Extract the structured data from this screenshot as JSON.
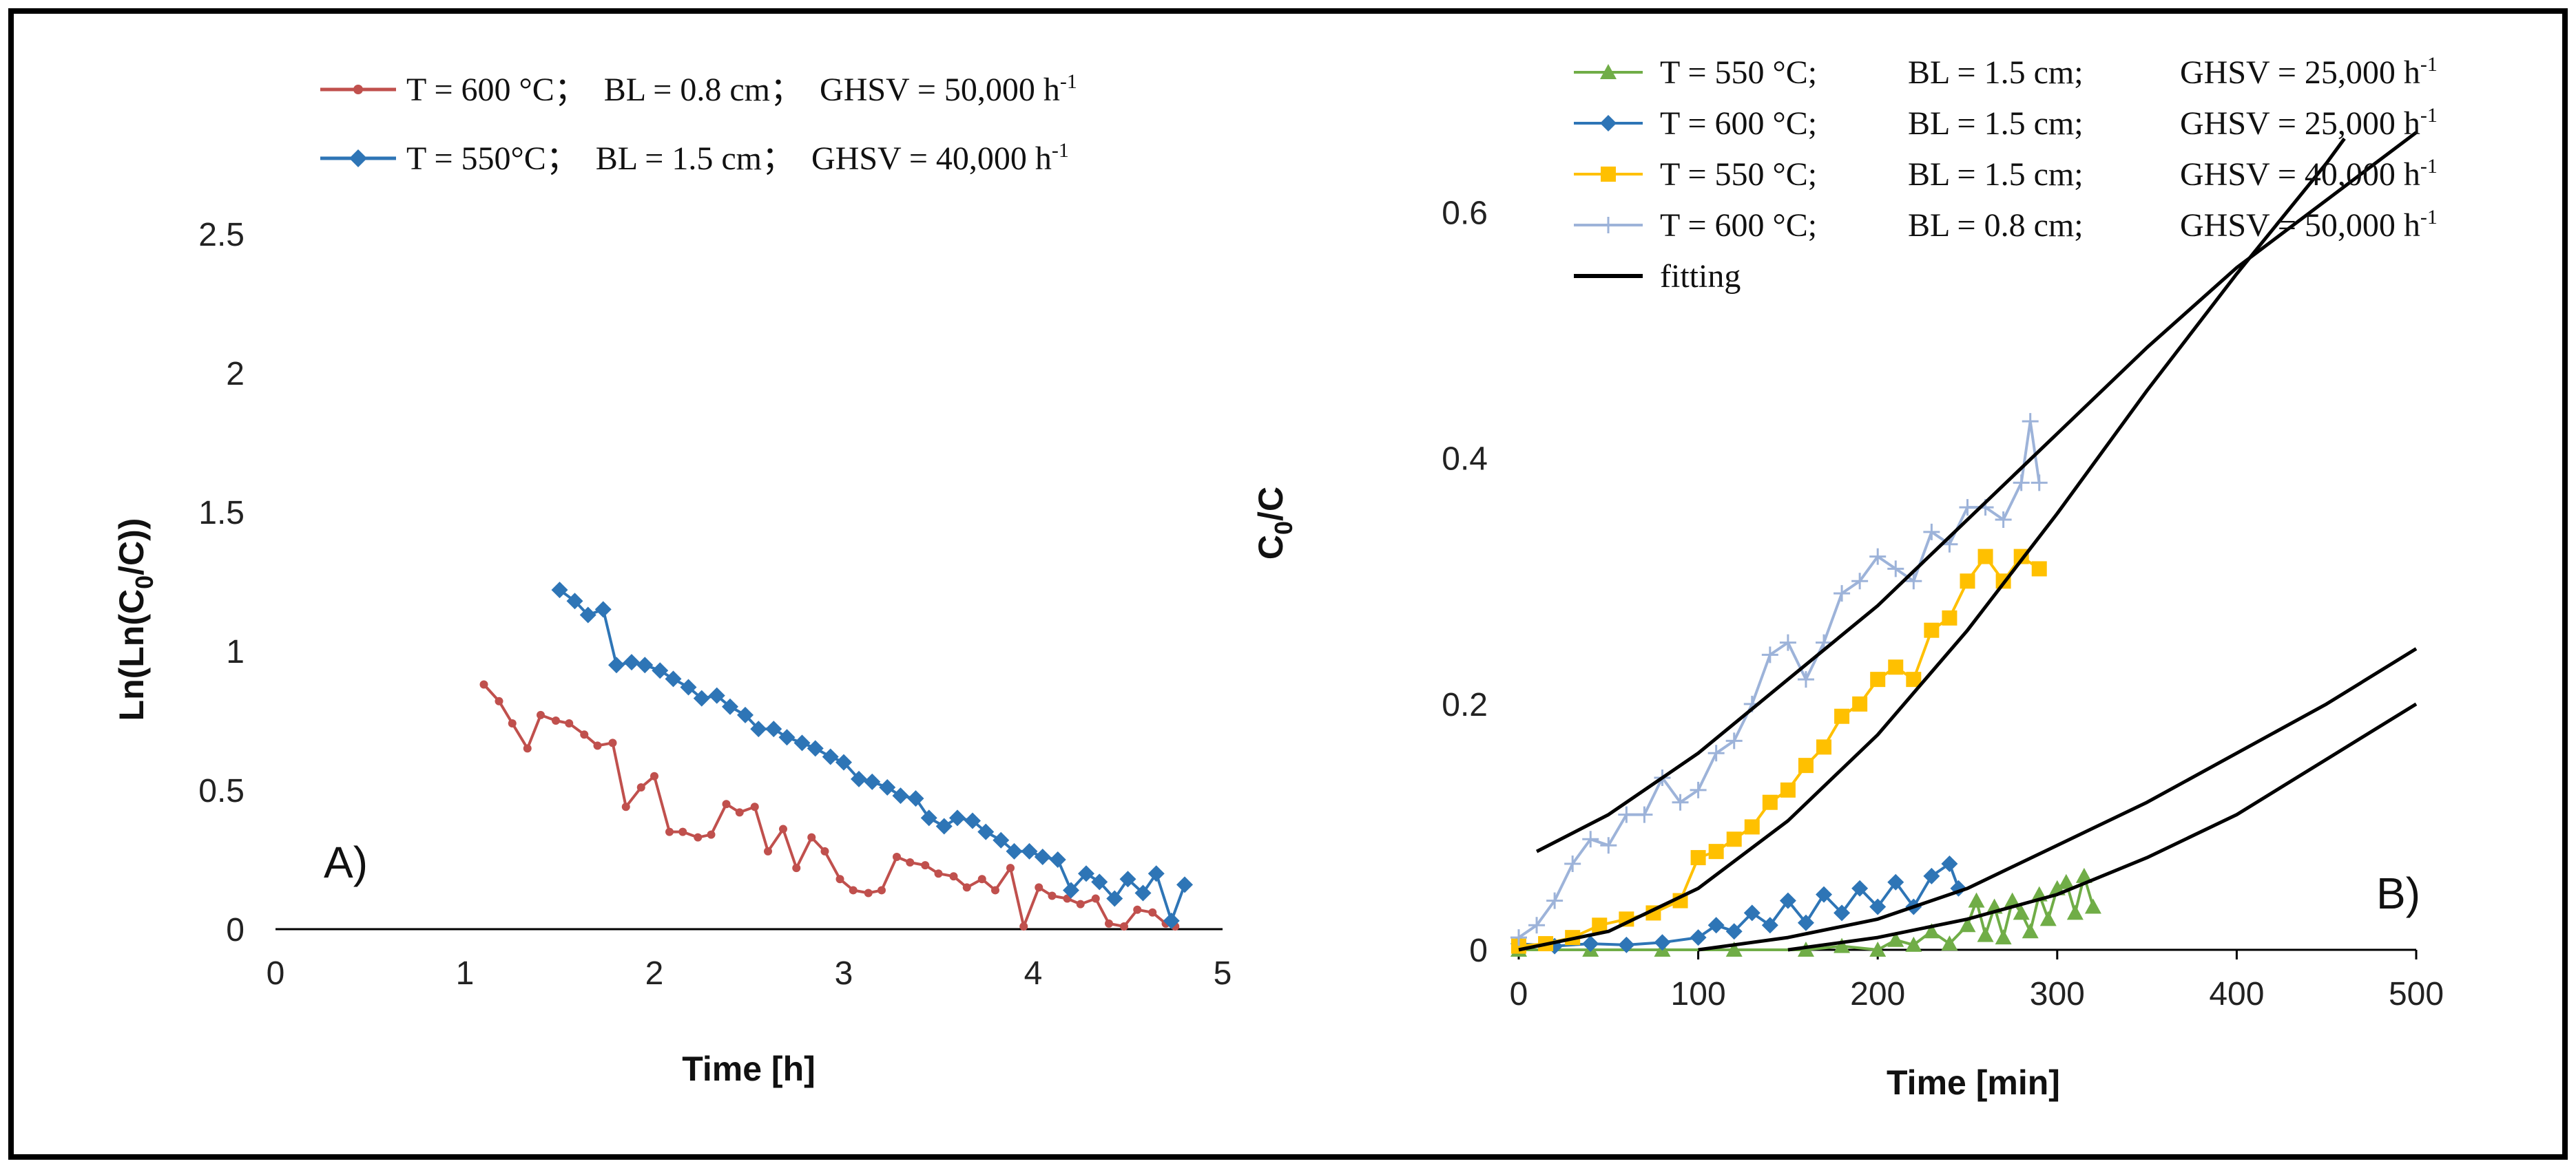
{
  "chart_data": [
    {
      "id": "A",
      "type": "line",
      "panel_label": "A)",
      "xlabel": "Time [h]",
      "ylabel": "Ln(Ln(C0/C))",
      "xlim": [
        0,
        5
      ],
      "ylim": [
        0,
        2.5
      ],
      "xticks": [
        "0",
        "1",
        "2",
        "3",
        "4",
        "5"
      ],
      "yticks": [
        "0",
        "0.5",
        "1",
        "1.5",
        "2",
        "2.5"
      ],
      "legend_position": "top",
      "series": [
        {
          "name": "T = 600 °C； BL = 0.8 cm； GHSV = 50,000 h-1",
          "legend": {
            "t": "T = 600 °C；",
            "bl": "BL = 0.8 cm；",
            "ghsv": "GHSV = 50,000 h",
            "sup": "-1"
          },
          "color": "#c0504d",
          "marker": "dot",
          "x": [
            1.1,
            1.18,
            1.25,
            1.33,
            1.4,
            1.48,
            1.55,
            1.63,
            1.7,
            1.78,
            1.85,
            1.93,
            2.0,
            2.08,
            2.15,
            2.23,
            2.3,
            2.38,
            2.45,
            2.53,
            2.6,
            2.68,
            2.75,
            2.83,
            2.9,
            2.98,
            3.05,
            3.13,
            3.2,
            3.28,
            3.35,
            3.43,
            3.5,
            3.58,
            3.65,
            3.73,
            3.8,
            3.88,
            3.95,
            4.03,
            4.1,
            4.18,
            4.25,
            4.33,
            4.4,
            4.48,
            4.55,
            4.63,
            4.7,
            4.75
          ],
          "y": [
            0.88,
            0.82,
            0.74,
            0.65,
            0.77,
            0.75,
            0.74,
            0.7,
            0.66,
            0.67,
            0.44,
            0.51,
            0.55,
            0.35,
            0.35,
            0.33,
            0.34,
            0.45,
            0.42,
            0.44,
            0.28,
            0.36,
            0.22,
            0.33,
            0.28,
            0.18,
            0.14,
            0.13,
            0.14,
            0.26,
            0.24,
            0.23,
            0.2,
            0.19,
            0.15,
            0.18,
            0.14,
            0.22,
            0.01,
            0.15,
            0.12,
            0.11,
            0.09,
            0.11,
            0.02,
            0.01,
            0.07,
            0.06,
            0.02,
            0.01
          ]
        },
        {
          "name": "T = 550°C； BL = 1.5 cm； GHSV = 40,000 h-1",
          "legend": {
            "t": "T = 550°C；",
            "bl": "BL = 1.5 cm；",
            "ghsv": "GHSV = 40,000 h",
            "sup": "-1"
          },
          "color": "#2e75b6",
          "marker": "diamond",
          "x": [
            1.5,
            1.58,
            1.65,
            1.73,
            1.8,
            1.88,
            1.95,
            2.03,
            2.1,
            2.18,
            2.25,
            2.33,
            2.4,
            2.48,
            2.55,
            2.63,
            2.7,
            2.78,
            2.85,
            2.93,
            3.0,
            3.08,
            3.15,
            3.23,
            3.3,
            3.38,
            3.45,
            3.53,
            3.6,
            3.68,
            3.75,
            3.83,
            3.9,
            3.98,
            4.05,
            4.13,
            4.2,
            4.28,
            4.35,
            4.43,
            4.5,
            4.58,
            4.65,
            4.73,
            4.8
          ],
          "y": [
            1.22,
            1.18,
            1.13,
            1.15,
            0.95,
            0.96,
            0.95,
            0.93,
            0.9,
            0.87,
            0.83,
            0.84,
            0.8,
            0.77,
            0.72,
            0.72,
            0.69,
            0.67,
            0.65,
            0.62,
            0.6,
            0.54,
            0.53,
            0.51,
            0.48,
            0.47,
            0.4,
            0.37,
            0.4,
            0.39,
            0.35,
            0.32,
            0.28,
            0.28,
            0.26,
            0.25,
            0.14,
            0.2,
            0.17,
            0.11,
            0.18,
            0.13,
            0.2,
            0.03,
            0.16
          ]
        }
      ]
    },
    {
      "id": "B",
      "type": "line",
      "panel_label": "B)",
      "xlabel": "Time [min]",
      "ylabel": "C0/C",
      "xlim": [
        0,
        500
      ],
      "ylim": [
        0,
        0.7
      ],
      "xticks": [
        "0",
        "100",
        "200",
        "300",
        "400",
        "500"
      ],
      "yticks": [
        "0",
        "0.2",
        "0.4",
        "0.6"
      ],
      "legend_position": "top-left",
      "series": [
        {
          "name": "T = 550 °C; BL = 1.5 cm; GHSV = 25,000 h-1",
          "legend": {
            "t": "T = 550 °C;",
            "bl": "BL = 1.5 cm;",
            "ghsv": "GHSV = 25,000 h",
            "sup": "-1"
          },
          "color": "#70ad47",
          "marker": "triangle",
          "x": [
            0,
            40,
            80,
            120,
            160,
            180,
            200,
            210,
            220,
            230,
            240,
            250,
            255,
            260,
            265,
            270,
            275,
            280,
            285,
            290,
            295,
            300,
            305,
            310,
            315,
            320
          ],
          "y": [
            0.0,
            0.0,
            0.0,
            0.0,
            0.0,
            0.003,
            0.0,
            0.008,
            0.004,
            0.015,
            0.005,
            0.02,
            0.04,
            0.012,
            0.035,
            0.01,
            0.04,
            0.03,
            0.015,
            0.045,
            0.025,
            0.05,
            0.055,
            0.03,
            0.06,
            0.035
          ]
        },
        {
          "name": "T = 600 °C; BL = 1.5 cm; GHSV = 25,000 h-1",
          "legend": {
            "t": "T = 600 °C;",
            "bl": "BL = 1.5 cm;",
            "ghsv": "GHSV = 25,000 h",
            "sup": "-1"
          },
          "color": "#2e75b6",
          "marker": "diamond",
          "x": [
            0,
            20,
            40,
            60,
            80,
            100,
            110,
            120,
            130,
            140,
            150,
            160,
            170,
            180,
            190,
            200,
            210,
            220,
            230,
            240,
            245
          ],
          "y": [
            0.005,
            0.003,
            0.005,
            0.004,
            0.006,
            0.01,
            0.02,
            0.015,
            0.03,
            0.02,
            0.04,
            0.022,
            0.045,
            0.03,
            0.05,
            0.035,
            0.055,
            0.035,
            0.06,
            0.07,
            0.05
          ]
        },
        {
          "name": "T = 550 °C; BL = 1.5 cm; GHSV = 40,000 h-1",
          "legend": {
            "t": "T = 550 °C;",
            "bl": "BL = 1.5 cm;",
            "ghsv": "GHSV = 40,000 h",
            "sup": "-1"
          },
          "color": "#ffc000",
          "marker": "square",
          "x": [
            0,
            15,
            30,
            45,
            60,
            75,
            90,
            100,
            110,
            120,
            130,
            140,
            150,
            160,
            170,
            180,
            190,
            200,
            210,
            220,
            230,
            240,
            250,
            260,
            270,
            280,
            290
          ],
          "y": [
            0.003,
            0.005,
            0.01,
            0.02,
            0.025,
            0.03,
            0.04,
            0.075,
            0.08,
            0.09,
            0.1,
            0.12,
            0.13,
            0.15,
            0.165,
            0.19,
            0.2,
            0.22,
            0.23,
            0.22,
            0.26,
            0.27,
            0.3,
            0.32,
            0.3,
            0.32,
            0.31
          ]
        },
        {
          "name": "T = 600 °C; BL = 0.8 cm; GHSV = 50,000 h-1",
          "legend": {
            "t": "T = 600 °C;",
            "bl": "BL = 0.8 cm;",
            "ghsv": "GHSV = 50,000 h",
            "sup": "-1"
          },
          "color": "#9db3d9",
          "marker": "plus",
          "x": [
            0,
            10,
            20,
            30,
            40,
            50,
            60,
            70,
            80,
            90,
            100,
            110,
            120,
            130,
            140,
            150,
            160,
            170,
            180,
            190,
            200,
            210,
            220,
            230,
            240,
            250,
            260,
            270,
            280,
            285,
            290
          ],
          "y": [
            0.01,
            0.02,
            0.04,
            0.07,
            0.09,
            0.085,
            0.11,
            0.11,
            0.14,
            0.12,
            0.13,
            0.16,
            0.17,
            0.2,
            0.24,
            0.25,
            0.22,
            0.25,
            0.29,
            0.3,
            0.32,
            0.31,
            0.3,
            0.34,
            0.33,
            0.36,
            0.36,
            0.35,
            0.38,
            0.43,
            0.38
          ]
        },
        {
          "name": "fitting",
          "legend": {
            "t": "fitting"
          },
          "color": "#000000",
          "marker": "none",
          "curves": [
            {
              "x": [
                10,
                50,
                100,
                150,
                200,
                250,
                300,
                350,
                400,
                450,
                500
              ],
              "y": [
                0.08,
                0.11,
                0.16,
                0.22,
                0.28,
                0.35,
                0.42,
                0.49,
                0.555,
                0.61,
                0.665
              ]
            },
            {
              "x": [
                0,
                50,
                100,
                150,
                200,
                250,
                300,
                350,
                400,
                450,
                460
              ],
              "y": [
                0.0,
                0.015,
                0.05,
                0.105,
                0.175,
                0.26,
                0.355,
                0.455,
                0.55,
                0.64,
                0.66
              ]
            },
            {
              "x": [
                100,
                150,
                200,
                250,
                300,
                350,
                400,
                450,
                500
              ],
              "y": [
                0.0,
                0.01,
                0.025,
                0.05,
                0.085,
                0.12,
                0.16,
                0.2,
                0.245
              ]
            },
            {
              "x": [
                150,
                200,
                250,
                300,
                350,
                400,
                450,
                500
              ],
              "y": [
                0.0,
                0.01,
                0.025,
                0.045,
                0.075,
                0.11,
                0.155,
                0.2
              ]
            }
          ]
        }
      ]
    }
  ]
}
